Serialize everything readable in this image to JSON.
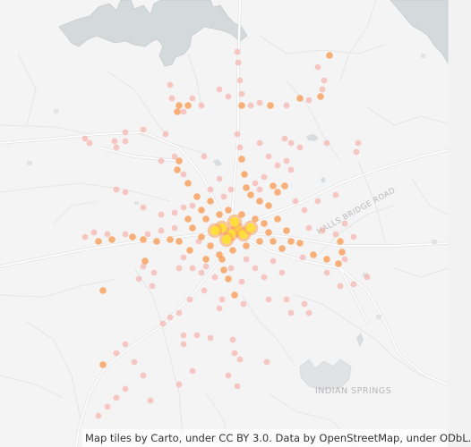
{
  "map": {
    "labels": {
      "road": "HALLS BRIDGE ROAD",
      "place": "INDIAN SPRINGS"
    },
    "attribution": "Map tiles by Carto, under CC BY 3.0. Data by OpenStreetMap, under ODbL.",
    "colors": {
      "land": "#f4f4f4",
      "water": "#d4d9dc",
      "water_edge": "#c5cbcf",
      "road_major": "#ffffff",
      "road_casing": "#e2e2e2",
      "road_minor": "#e6e6e6",
      "label": "#b7b7b7",
      "point_light": "#f7a7a0",
      "point_mid": "#f9a05c",
      "point_hot": "#ffe133"
    },
    "points": [
      [
        265,
        257,
        "hot"
      ],
      [
        258,
        262,
        "hot"
      ],
      [
        248,
        255,
        "hot"
      ],
      [
        272,
        262,
        "hot"
      ],
      [
        262,
        248,
        "hot"
      ],
      [
        253,
        268,
        "hot"
      ],
      [
        240,
        258,
        "hot"
      ],
      [
        280,
        255,
        "hot"
      ],
      [
        230,
        245,
        "mid"
      ],
      [
        225,
        235,
        "mid"
      ],
      [
        220,
        220,
        "mid"
      ],
      [
        235,
        225,
        "mid"
      ],
      [
        245,
        240,
        "mid"
      ],
      [
        255,
        235,
        "mid"
      ],
      [
        270,
        240,
        "mid"
      ],
      [
        285,
        245,
        "mid"
      ],
      [
        295,
        250,
        "mid"
      ],
      [
        300,
        260,
        "mid"
      ],
      [
        305,
        270,
        "mid"
      ],
      [
        290,
        270,
        "mid"
      ],
      [
        275,
        275,
        "mid"
      ],
      [
        260,
        280,
        "mid"
      ],
      [
        245,
        285,
        "mid"
      ],
      [
        235,
        275,
        "mid"
      ],
      [
        225,
        265,
        "mid"
      ],
      [
        215,
        255,
        "mid"
      ],
      [
        210,
        245,
        "mid"
      ],
      [
        300,
        230,
        "mid"
      ],
      [
        310,
        215,
        "mid"
      ],
      [
        318,
        208,
        "mid"
      ],
      [
        305,
        208,
        "mid"
      ],
      [
        290,
        225,
        "mid"
      ],
      [
        280,
        218,
        "mid"
      ],
      [
        310,
        245,
        "mid"
      ],
      [
        320,
        258,
        "mid"
      ],
      [
        325,
        270,
        "mid"
      ],
      [
        315,
        278,
        "mid"
      ],
      [
        335,
        272,
        "mid"
      ],
      [
        350,
        285,
        "mid"
      ],
      [
        365,
        290,
        "mid"
      ],
      [
        378,
        295,
        "mid"
      ],
      [
        382,
        282,
        "mid"
      ],
      [
        380,
        270,
        "mid"
      ],
      [
        248,
        290,
        "mid"
      ],
      [
        250,
        302,
        "mid"
      ],
      [
        255,
        312,
        "mid"
      ],
      [
        262,
        330,
        "mid"
      ],
      [
        230,
        290,
        "mid"
      ],
      [
        212,
        280,
        "mid"
      ],
      [
        200,
        270,
        "mid"
      ],
      [
        190,
        268,
        "mid"
      ],
      [
        175,
        270,
        "mid"
      ],
      [
        160,
        268,
        "mid"
      ],
      [
        148,
        265,
        "mid"
      ],
      [
        125,
        268,
        "mid"
      ],
      [
        110,
        270,
        "mid"
      ],
      [
        200,
        180,
        "mid"
      ],
      [
        198,
        190,
        "mid"
      ],
      [
        210,
        205,
        "mid"
      ],
      [
        270,
        178,
        "mid"
      ],
      [
        273,
        195,
        "mid"
      ],
      [
        275,
        210,
        "mid"
      ],
      [
        270,
        118,
        "mid"
      ],
      [
        302,
        118,
        "mid"
      ],
      [
        210,
        118,
        "mid"
      ],
      [
        200,
        118,
        "mid"
      ],
      [
        198,
        125,
        "mid"
      ],
      [
        335,
        110,
        "mid"
      ],
      [
        358,
        108,
        "mid"
      ],
      [
        368,
        62,
        "mid"
      ],
      [
        115,
        408,
        "mid"
      ],
      [
        115,
        325,
        "mid"
      ],
      [
        162,
        292,
        "mid"
      ],
      [
        355,
        75,
        "light"
      ],
      [
        362,
        90,
        "light"
      ],
      [
        360,
        100,
        "light"
      ],
      [
        345,
        112,
        "light"
      ],
      [
        320,
        118,
        "light"
      ],
      [
        290,
        115,
        "light"
      ],
      [
        270,
        105,
        "light"
      ],
      [
        268,
        90,
        "light"
      ],
      [
        266,
        70,
        "light"
      ],
      [
        265,
        58,
        "light"
      ],
      [
        280,
        118,
        "light"
      ],
      [
        245,
        100,
        "light"
      ],
      [
        255,
        108,
        "light"
      ],
      [
        225,
        118,
        "light"
      ],
      [
        215,
        110,
        "light"
      ],
      [
        190,
        95,
        "light"
      ],
      [
        192,
        110,
        "light"
      ],
      [
        205,
        125,
        "light"
      ],
      [
        228,
        175,
        "light"
      ],
      [
        185,
        150,
        "light"
      ],
      [
        160,
        145,
        "light"
      ],
      [
        140,
        148,
        "light"
      ],
      [
        128,
        158,
        "light"
      ],
      [
        140,
        158,
        "light"
      ],
      [
        130,
        165,
        "light"
      ],
      [
        95,
        155,
        "light"
      ],
      [
        100,
        160,
        "light"
      ],
      [
        180,
        180,
        "light"
      ],
      [
        195,
        175,
        "light"
      ],
      [
        205,
        195,
        "light"
      ],
      [
        265,
        150,
        "light"
      ],
      [
        268,
        165,
        "light"
      ],
      [
        290,
        160,
        "light"
      ],
      [
        300,
        175,
        "light"
      ],
      [
        310,
        185,
        "light"
      ],
      [
        320,
        180,
        "light"
      ],
      [
        325,
        190,
        "light"
      ],
      [
        335,
        165,
        "light"
      ],
      [
        325,
        160,
        "light"
      ],
      [
        318,
        155,
        "light"
      ],
      [
        400,
        160,
        "light"
      ],
      [
        398,
        170,
        "light"
      ],
      [
        365,
        160,
        "light"
      ],
      [
        375,
        218,
        "light"
      ],
      [
        385,
        250,
        "light"
      ],
      [
        395,
        265,
        "light"
      ],
      [
        375,
        262,
        "light"
      ],
      [
        360,
        258,
        "light"
      ],
      [
        345,
        255,
        "light"
      ],
      [
        340,
        235,
        "light"
      ],
      [
        355,
        225,
        "light"
      ],
      [
        330,
        225,
        "light"
      ],
      [
        338,
        288,
        "light"
      ],
      [
        365,
        305,
        "light"
      ],
      [
        380,
        320,
        "light"
      ],
      [
        385,
        290,
        "light"
      ],
      [
        410,
        310,
        "light"
      ],
      [
        395,
        318,
        "light"
      ],
      [
        305,
        292,
        "light"
      ],
      [
        315,
        305,
        "light"
      ],
      [
        295,
        310,
        "light"
      ],
      [
        285,
        300,
        "light"
      ],
      [
        275,
        290,
        "light"
      ],
      [
        270,
        315,
        "light"
      ],
      [
        258,
        300,
        "light"
      ],
      [
        272,
        340,
        "light"
      ],
      [
        300,
        335,
        "light"
      ],
      [
        320,
        335,
        "light"
      ],
      [
        340,
        340,
        "light"
      ],
      [
        345,
        350,
        "light"
      ],
      [
        325,
        350,
        "light"
      ],
      [
        245,
        345,
        "light"
      ],
      [
        248,
        335,
        "light"
      ],
      [
        228,
        325,
        "light"
      ],
      [
        212,
        335,
        "light"
      ],
      [
        200,
        350,
        "light"
      ],
      [
        190,
        355,
        "light"
      ],
      [
        182,
        362,
        "light"
      ],
      [
        205,
        375,
        "light"
      ],
      [
        205,
        385,
        "light"
      ],
      [
        220,
        375,
        "light"
      ],
      [
        235,
        378,
        "light"
      ],
      [
        260,
        380,
        "light"
      ],
      [
        262,
        395,
        "light"
      ],
      [
        268,
        402,
        "light"
      ],
      [
        298,
        405,
        "light"
      ],
      [
        255,
        420,
        "light"
      ],
      [
        265,
        432,
        "light"
      ],
      [
        215,
        415,
        "light"
      ],
      [
        200,
        430,
        "light"
      ],
      [
        160,
        420,
        "light"
      ],
      [
        140,
        435,
        "light"
      ],
      [
        130,
        445,
        "light"
      ],
      [
        120,
        455,
        "light"
      ],
      [
        110,
        465,
        "light"
      ],
      [
        168,
        448,
        "light"
      ],
      [
        140,
        385,
        "light"
      ],
      [
        130,
        395,
        "light"
      ],
      [
        150,
        405,
        "light"
      ],
      [
        170,
        320,
        "light"
      ],
      [
        172,
        305,
        "light"
      ],
      [
        160,
        298,
        "light"
      ],
      [
        155,
        312,
        "light"
      ],
      [
        200,
        300,
        "light"
      ],
      [
        205,
        288,
        "light"
      ],
      [
        215,
        300,
        "light"
      ],
      [
        225,
        305,
        "light"
      ],
      [
        230,
        298,
        "light"
      ],
      [
        240,
        310,
        "light"
      ],
      [
        130,
        212,
        "light"
      ],
      [
        140,
        215,
        "light"
      ],
      [
        160,
        232,
        "light"
      ],
      [
        180,
        240,
        "light"
      ],
      [
        195,
        238,
        "light"
      ],
      [
        180,
        258,
        "light"
      ],
      [
        165,
        262,
        "light"
      ],
      [
        140,
        262,
        "light"
      ],
      [
        120,
        262,
        "light"
      ],
      [
        105,
        260,
        "light"
      ],
      [
        95,
        265,
        "light"
      ],
      [
        222,
        270,
        "light"
      ],
      [
        195,
        255,
        "light"
      ],
      [
        205,
        232,
        "light"
      ],
      [
        215,
        230,
        "light"
      ],
      [
        250,
        220,
        "light"
      ],
      [
        258,
        212,
        "light"
      ],
      [
        235,
        212,
        "light"
      ],
      [
        245,
        200,
        "light"
      ],
      [
        285,
        205,
        "light"
      ],
      [
        295,
        198,
        "light"
      ],
      [
        290,
        212,
        "light"
      ]
    ]
  }
}
